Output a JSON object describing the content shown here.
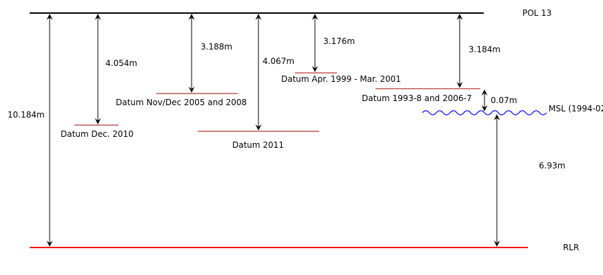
{
  "title": "",
  "reference_lines": {
    "top_label": "POL 13",
    "bottom_label": "RLR",
    "top_color": "#000000",
    "bottom_color": "#ff0000"
  },
  "datums": [
    {
      "name": "Datum Dec. 2010",
      "distance": "4.054m"
    },
    {
      "name": "Datum Nov/Dec 2005 and 2008",
      "distance": "3.188m"
    },
    {
      "name": "Datum 2011",
      "distance": "4.067m"
    },
    {
      "name": "Datum Apr. 1999 - Mar. 2001",
      "distance": "3.176m"
    },
    {
      "name": "Datum 1993-8 and 2006-7",
      "distance": "3.184m"
    }
  ],
  "total_distance": "10.184m",
  "msl": {
    "label": "MSL (1994-02)",
    "offset_from_datum": "0.07m",
    "height_above_rlr": "6.93m",
    "color": "#0000ff"
  },
  "datum_line_color": "#a00000"
}
